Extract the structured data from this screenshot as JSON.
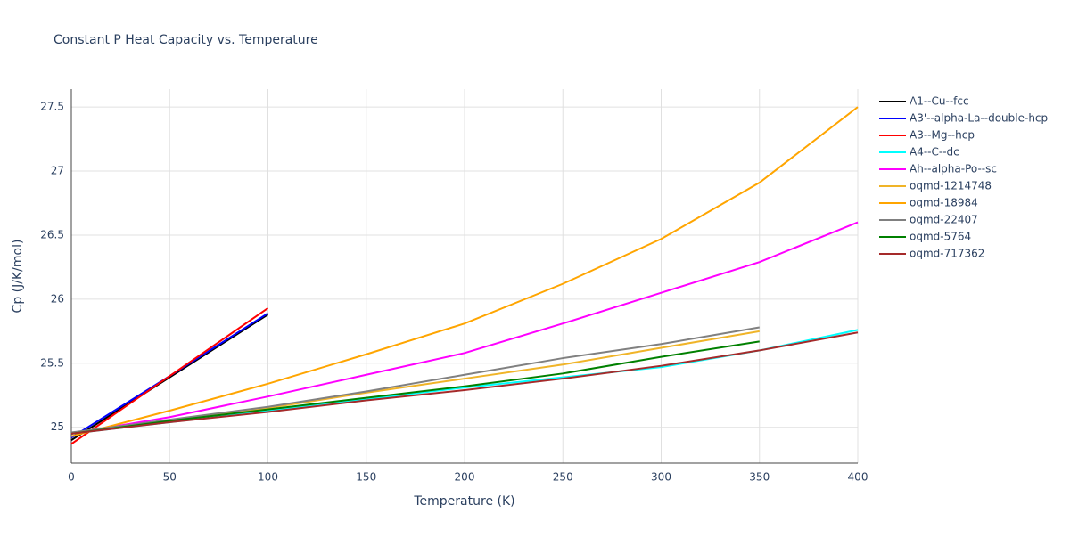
{
  "chart_data": {
    "type": "line",
    "title": "Constant P Heat Capacity vs. Temperature",
    "x_label": "Temperature (K)",
    "y_label": "Cp (J/K/mol)",
    "x": [
      0,
      50,
      100,
      150,
      200,
      250,
      300,
      350,
      400
    ],
    "xlim": [
      0,
      400
    ],
    "xticks": [
      0,
      50,
      100,
      150,
      200,
      250,
      300,
      350,
      400
    ],
    "ylim": [
      24.72,
      27.64
    ],
    "yticks": [
      25,
      25.5,
      26,
      26.5,
      27,
      27.5
    ],
    "grid": true,
    "legend": "right",
    "series": [
      {
        "name": "A1--Cu--fcc",
        "color": "#000000",
        "values": [
          24.9,
          25.39,
          25.88,
          null,
          null,
          null,
          null,
          null,
          null
        ]
      },
      {
        "name": "A3'--alpha-La--double-hcp",
        "color": "#0000ff",
        "values": [
          24.92,
          25.4,
          25.89,
          null,
          null,
          null,
          null,
          null,
          null
        ]
      },
      {
        "name": "A3--Mg--hcp",
        "color": "#ff0000",
        "values": [
          24.87,
          25.4,
          25.93,
          null,
          null,
          null,
          null,
          null,
          null
        ]
      },
      {
        "name": "A4--C--dc",
        "color": "#00ffff",
        "values": [
          24.95,
          25.04,
          25.13,
          25.22,
          25.31,
          25.39,
          25.47,
          25.6,
          25.76
        ]
      },
      {
        "name": "Ah--alpha-Po--sc",
        "color": "#ff00ff",
        "values": [
          24.95,
          25.08,
          25.24,
          25.41,
          25.58,
          25.81,
          26.05,
          26.29,
          26.6
        ]
      },
      {
        "name": "oqmd-1214748",
        "color": "#f0b428",
        "values": [
          24.95,
          25.05,
          25.15,
          25.27,
          25.38,
          25.49,
          25.62,
          25.75,
          null
        ]
      },
      {
        "name": "oqmd-18984",
        "color": "#ffa500",
        "values": [
          24.93,
          25.13,
          25.34,
          25.57,
          25.81,
          26.12,
          26.47,
          26.91,
          27.5
        ]
      },
      {
        "name": "oqmd-22407",
        "color": "#808080",
        "values": [
          24.96,
          25.06,
          25.16,
          25.28,
          25.41,
          25.54,
          25.65,
          25.78,
          null
        ]
      },
      {
        "name": "oqmd-5764",
        "color": "#008000",
        "values": [
          24.95,
          25.05,
          25.14,
          25.23,
          25.32,
          25.42,
          25.55,
          25.67,
          null
        ]
      },
      {
        "name": "oqmd-717362",
        "color": "#a52a2a",
        "values": [
          24.95,
          25.04,
          25.12,
          25.21,
          25.29,
          25.38,
          25.48,
          25.6,
          25.74
        ]
      }
    ]
  }
}
